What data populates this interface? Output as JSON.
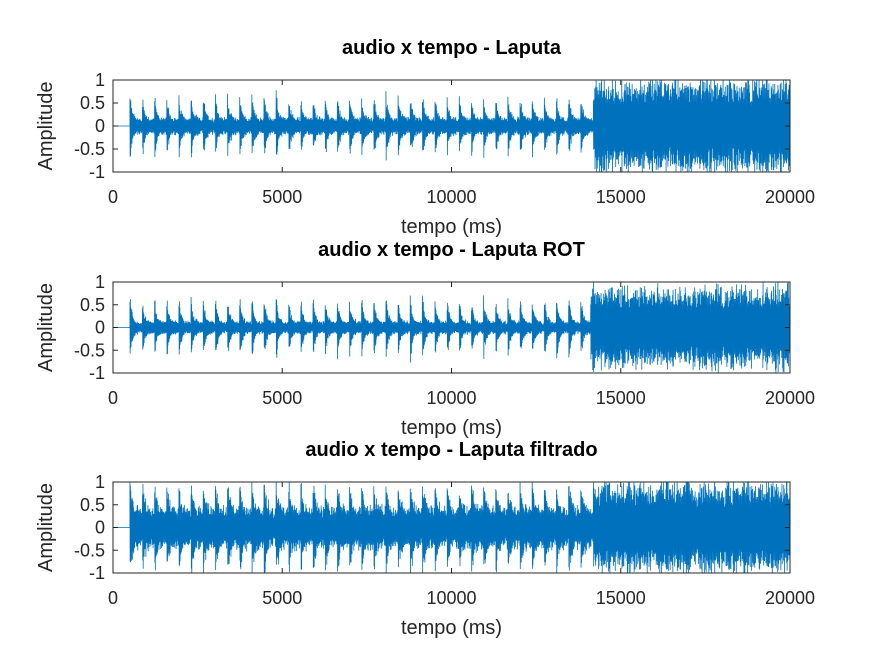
{
  "chart_data": [
    {
      "type": "line",
      "title": "audio x tempo - Laputa",
      "xlabel": "tempo (ms)",
      "ylabel": "Amplitude",
      "xlim": [
        0,
        20000
      ],
      "ylim": [
        -1,
        1
      ],
      "xticks": [
        0,
        5000,
        10000,
        15000,
        20000
      ],
      "yticks": [
        -1,
        -0.5,
        0,
        0.5,
        1
      ],
      "xtick_labels": [
        "0",
        "5000",
        "10000",
        "15000",
        "20000"
      ],
      "ytick_labels": [
        "-1",
        "-0.5",
        "0",
        "0.5",
        "1"
      ],
      "color": "#0072BD",
      "grid": false,
      "signal": {
        "start": 500,
        "beat_period": 360,
        "beat_peak": 0.7,
        "body_level": 0.2,
        "noise_start": 14200,
        "noise_end": 20000,
        "noise_level": 1.0
      }
    },
    {
      "type": "line",
      "title": "audio x tempo - Laputa ROT",
      "xlabel": "tempo (ms)",
      "ylabel": "Amplitude",
      "xlim": [
        0,
        20000
      ],
      "ylim": [
        -1,
        1
      ],
      "xticks": [
        0,
        5000,
        10000,
        15000,
        20000
      ],
      "yticks": [
        -1,
        -0.5,
        0,
        0.5,
        1
      ],
      "xtick_labels": [
        "0",
        "5000",
        "10000",
        "15000",
        "20000"
      ],
      "ytick_labels": [
        "-1",
        "-0.5",
        "0",
        "0.5",
        "1"
      ],
      "color": "#0072BD",
      "grid": false,
      "signal": {
        "start": 500,
        "beat_period": 360,
        "beat_peak": 0.75,
        "body_level": 0.15,
        "noise_start": 14100,
        "noise_end": 20000,
        "noise_level": 0.9
      }
    },
    {
      "type": "line",
      "title": "audio x tempo - Laputa filtrado",
      "xlabel": "tempo (ms)",
      "ylabel": "Amplitude",
      "xlim": [
        0,
        20000
      ],
      "ylim": [
        -1,
        1
      ],
      "xticks": [
        0,
        5000,
        10000,
        15000,
        20000
      ],
      "yticks": [
        -1,
        -0.5,
        0,
        0.5,
        1
      ],
      "xtick_labels": [
        "0",
        "5000",
        "10000",
        "15000",
        "20000"
      ],
      "ytick_labels": [
        "-1",
        "-0.5",
        "0",
        "0.5",
        "1"
      ],
      "color": "#0072BD",
      "grid": false,
      "signal": {
        "start": 500,
        "beat_period": 360,
        "beat_peak": 1.0,
        "body_level": 0.5,
        "noise_start": 14200,
        "noise_end": 20000,
        "noise_level": 1.0
      }
    }
  ]
}
